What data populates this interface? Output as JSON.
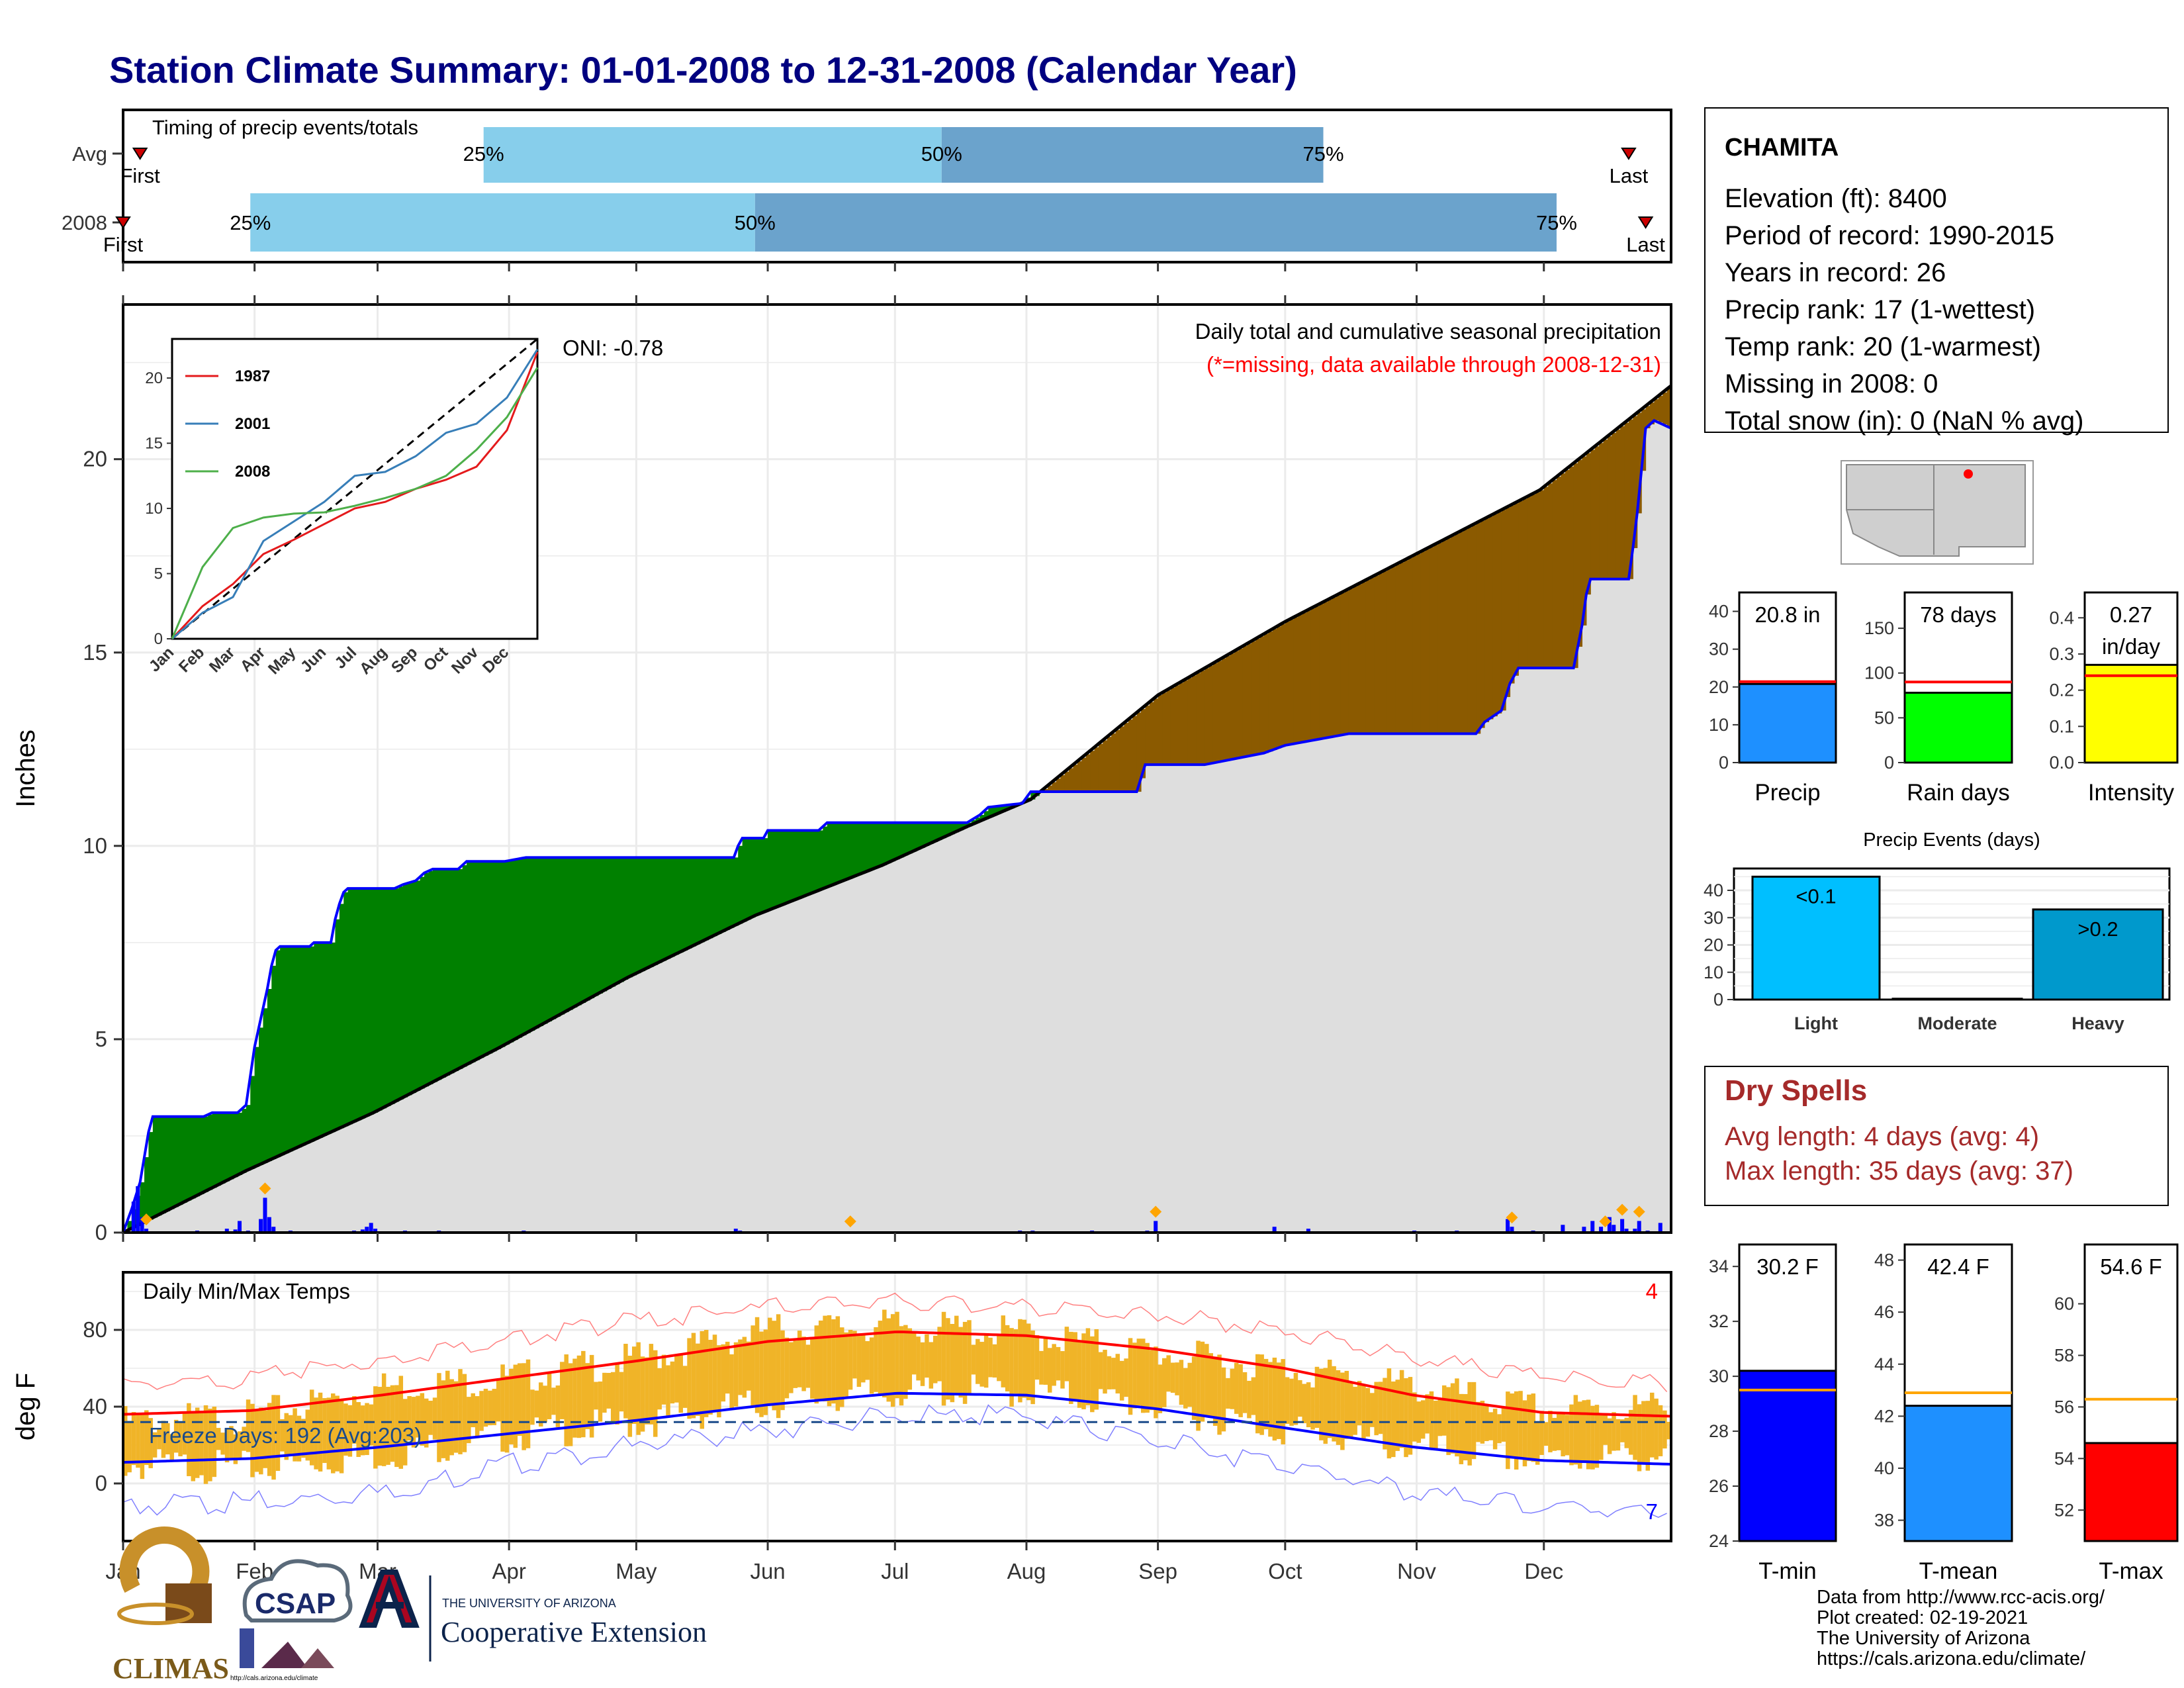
{
  "page": {
    "title": "Station Climate Summary: 01-01-2008 to 12-31-2008 (Calendar Year)",
    "footer": [
      "Data from http://www.rcc-acis.org/",
      "Plot created: 02-19-2021",
      "The University of Arizona",
      "https://cals.arizona.edu/climate/"
    ],
    "logos": {
      "climas": "CLIMAS",
      "csap": "CSAP",
      "csap_url": "http://cals.arizona.edu/climate",
      "ua_small": "THE UNIVERSITY OF ARIZONA",
      "ua_big": "Cooperative Extension"
    }
  },
  "station": {
    "name": "CHAMITA",
    "lines": [
      "Elevation (ft): 8400",
      "Period of record: 1990-2015",
      "Years in record: 26",
      "Precip rank: 17 (1-wettest)",
      "Temp rank: 20 (1-warmest)",
      "Missing in 2008: 0",
      "Total snow (in): 0 (NaN % avg)"
    ]
  },
  "dry_spells": {
    "title": "Dry Spells",
    "lines": [
      "Avg length: 4 days (avg: 4)",
      "Max length: 35 days (avg: 37)"
    ]
  },
  "colors": {
    "title": "#000080",
    "wet": "#008000",
    "dry": "#8B5A00",
    "cum_line": "#0000ff",
    "avg_line": "#000000",
    "bar_light": "#87CEEB",
    "bar_dark": "#6BA3CC",
    "tmax": "#ff0000",
    "tmin": "#0000ff",
    "temp_bar": "#F0B428",
    "dry_text": "#A52A2A",
    "missing": "#ff0000"
  },
  "chart_data": [
    {
      "type": "bar",
      "title": "Timing of precip events/totals",
      "categories": [
        "Avg",
        "2008"
      ],
      "x_labels": [
        "Jan",
        "Feb",
        "Mar",
        "Apr",
        "May",
        "Jun",
        "Jul",
        "Aug",
        "Sep",
        "Oct",
        "Nov",
        "Dec"
      ],
      "series": [
        {
          "name": "Avg",
          "first_doy": 5,
          "p25_doy": 86,
          "p50_doy": 194,
          "p75_doy": 284,
          "last_doy": 356,
          "labels": [
            "First",
            "25%",
            "50%",
            "75%",
            "Last"
          ]
        },
        {
          "name": "2008",
          "first_doy": 1,
          "p25_doy": 31,
          "p50_doy": 150,
          "p75_doy": 339,
          "last_doy": 360,
          "labels": [
            "First",
            "25%",
            "50%",
            "75%",
            "Last"
          ]
        }
      ]
    },
    {
      "type": "area",
      "title": "Daily total and cumulative seasonal precipitation",
      "subtitle": "(*=missing, data available through 2008-12-31)",
      "annotation": "ONI: -0.78",
      "ylabel": "Inches",
      "ylim": [
        0,
        24
      ],
      "yticks": [
        0,
        5,
        10,
        15,
        20
      ],
      "x_labels": [
        "Jan",
        "Feb",
        "Mar",
        "Apr",
        "May",
        "Jun",
        "Jul",
        "Aug",
        "Sep",
        "Oct",
        "Nov",
        "Dec"
      ],
      "cumulative_2008": [
        [
          1,
          0
        ],
        [
          3,
          0.6
        ],
        [
          5,
          1.3
        ],
        [
          7,
          2.6
        ],
        [
          8,
          3.0
        ],
        [
          20,
          3.0
        ],
        [
          22,
          3.1
        ],
        [
          28,
          3.1
        ],
        [
          30,
          3.3
        ],
        [
          32,
          4.8
        ],
        [
          33,
          5.3
        ],
        [
          35,
          6.3
        ],
        [
          36,
          6.9
        ],
        [
          37,
          7.3
        ],
        [
          38,
          7.4
        ],
        [
          45,
          7.4
        ],
        [
          46,
          7.5
        ],
        [
          50,
          7.5
        ],
        [
          51,
          8.1
        ],
        [
          52,
          8.5
        ],
        [
          53,
          8.8
        ],
        [
          54,
          8.9
        ],
        [
          65,
          8.9
        ],
        [
          67,
          9.0
        ],
        [
          70,
          9.1
        ],
        [
          72,
          9.3
        ],
        [
          74,
          9.4
        ],
        [
          80,
          9.4
        ],
        [
          82,
          9.6
        ],
        [
          91,
          9.6
        ],
        [
          96,
          9.7
        ],
        [
          145,
          9.7
        ],
        [
          146,
          10.0
        ],
        [
          147,
          10.2
        ],
        [
          152,
          10.2
        ],
        [
          153,
          10.4
        ],
        [
          165,
          10.4
        ],
        [
          167,
          10.6
        ],
        [
          200,
          10.6
        ],
        [
          203,
          10.8
        ],
        [
          205,
          11.0
        ],
        [
          213,
          11.1
        ],
        [
          215,
          11.4
        ],
        [
          240,
          11.4
        ],
        [
          242,
          12.1
        ],
        [
          256,
          12.1
        ],
        [
          270,
          12.4
        ],
        [
          275,
          12.6
        ],
        [
          290,
          12.9
        ],
        [
          320,
          12.9
        ],
        [
          322,
          13.2
        ],
        [
          326,
          13.5
        ],
        [
          328,
          14.2
        ],
        [
          330,
          14.6
        ],
        [
          343,
          14.6
        ],
        [
          345,
          15.7
        ],
        [
          346,
          16.5
        ],
        [
          347,
          16.9
        ],
        [
          356,
          16.9
        ],
        [
          357,
          17.7
        ],
        [
          358,
          18.6
        ],
        [
          359,
          19.7
        ],
        [
          360,
          20.8
        ],
        [
          362,
          21.0
        ],
        [
          366,
          20.8
        ]
      ],
      "average_cumulative": [
        [
          1,
          0
        ],
        [
          30,
          1.6
        ],
        [
          60,
          3.1
        ],
        [
          90,
          4.8
        ],
        [
          120,
          6.6
        ],
        [
          150,
          8.2
        ],
        [
          180,
          9.5
        ],
        [
          200,
          10.5
        ],
        [
          215,
          11.2
        ],
        [
          245,
          13.9
        ],
        [
          275,
          15.8
        ],
        [
          305,
          17.5
        ],
        [
          335,
          19.2
        ],
        [
          366,
          21.9
        ]
      ],
      "daily_precip_events": [
        [
          3,
          0.8
        ],
        [
          4,
          1.2
        ],
        [
          5,
          0.4
        ],
        [
          6,
          0.1
        ],
        [
          18,
          0.05
        ],
        [
          25,
          0.1
        ],
        [
          27,
          0.08
        ],
        [
          28,
          0.3
        ],
        [
          30,
          0.05
        ],
        [
          33,
          0.35
        ],
        [
          34,
          0.9
        ],
        [
          35,
          0.4
        ],
        [
          36,
          0.15
        ],
        [
          40,
          0.05
        ],
        [
          55,
          0.05
        ],
        [
          57,
          0.08
        ],
        [
          58,
          0.15
        ],
        [
          59,
          0.25
        ],
        [
          60,
          0.1
        ],
        [
          67,
          0.05
        ],
        [
          75,
          0.05
        ],
        [
          80,
          0.03
        ],
        [
          88,
          0.02
        ],
        [
          95,
          0.05
        ],
        [
          118,
          0.03
        ],
        [
          145,
          0.1
        ],
        [
          146,
          0.05
        ],
        [
          152,
          0.03
        ],
        [
          164,
          0.03
        ],
        [
          198,
          0.03
        ],
        [
          200,
          0.02
        ],
        [
          210,
          0.02
        ],
        [
          212,
          0.05
        ],
        [
          215,
          0.05
        ],
        [
          229,
          0.05
        ],
        [
          238,
          0.02
        ],
        [
          242,
          0.05
        ],
        [
          244,
          0.3
        ],
        [
          253,
          0.02
        ],
        [
          272,
          0.15
        ],
        [
          280,
          0.1
        ],
        [
          305,
          0.05
        ],
        [
          315,
          0.05
        ],
        [
          321,
          0.02
        ],
        [
          327,
          0.35
        ],
        [
          328,
          0.15
        ],
        [
          333,
          0.05
        ],
        [
          340,
          0.2
        ],
        [
          345,
          0.15
        ],
        [
          347,
          0.3
        ],
        [
          349,
          0.15
        ],
        [
          351,
          0.4
        ],
        [
          352,
          0.2
        ],
        [
          354,
          0.35
        ],
        [
          355,
          0.1
        ],
        [
          357,
          0.1
        ],
        [
          358,
          0.3
        ],
        [
          360,
          0.05
        ],
        [
          363,
          0.25
        ]
      ],
      "extreme_markers_doy": [
        6,
        34,
        172,
        244,
        328,
        350,
        354,
        358
      ],
      "inset": {
        "type": "line",
        "yticks": [
          0,
          5,
          10,
          15,
          20
        ],
        "ylim": [
          0,
          23
        ],
        "x_labels": [
          "Jan",
          "Feb",
          "Mar",
          "Apr",
          "May",
          "Jun",
          "Jul",
          "Aug",
          "Sep",
          "Oct",
          "Nov",
          "Dec"
        ],
        "series": [
          {
            "name": "1987",
            "color": "#e41a1c",
            "values": [
              0,
              2.5,
              4.2,
              6.5,
              7.6,
              8.8,
              10.0,
              10.5,
              11.5,
              12.2,
              13.2,
              16.0,
              22.0
            ]
          },
          {
            "name": "2001",
            "color": "#377eb8",
            "values": [
              0,
              2.0,
              3.2,
              7.5,
              9.0,
              10.5,
              12.5,
              12.8,
              14.0,
              15.8,
              16.5,
              18.5,
              22.2
            ]
          },
          {
            "name": "2008",
            "color": "#4daf4a",
            "values": [
              0,
              5.5,
              8.5,
              9.3,
              9.6,
              9.7,
              10.2,
              10.8,
              11.5,
              12.5,
              14.5,
              17.0,
              20.8
            ]
          }
        ]
      }
    },
    {
      "type": "bar",
      "title": "Daily Min/Max Temps",
      "ylabel": "deg F",
      "ylim": [
        -30,
        110
      ],
      "yticks": [
        0,
        40,
        80
      ],
      "x_labels": [
        "Jan",
        "Feb",
        "Mar",
        "Apr",
        "May",
        "Jun",
        "Jul",
        "Aug",
        "Sep",
        "Oct",
        "Nov",
        "Dec"
      ],
      "annotation": "Freeze Days: 192 (Avg:203)",
      "freezing_line": 32,
      "count_record_high": "4",
      "count_record_low": "7",
      "normal_tmax_monthly": [
        36,
        38,
        46,
        55,
        64,
        74,
        79,
        77,
        70,
        60,
        46,
        37,
        35
      ],
      "normal_tmin_monthly": [
        11,
        13,
        19,
        26,
        33,
        41,
        47,
        46,
        39,
        29,
        19,
        12,
        10
      ],
      "record_tmax_monthly": [
        50,
        55,
        65,
        75,
        85,
        92,
        95,
        92,
        88,
        80,
        65,
        55,
        52
      ],
      "record_tmin_monthly": [
        -12,
        -10,
        -5,
        10,
        20,
        28,
        35,
        35,
        22,
        10,
        -5,
        -12,
        -15
      ],
      "obs_tmax_monthly": [
        32,
        35,
        50,
        55,
        65,
        80,
        82,
        78,
        68,
        60,
        50,
        38,
        40
      ],
      "obs_tmin_monthly": [
        10,
        8,
        15,
        25,
        32,
        42,
        48,
        48,
        40,
        28,
        18,
        12,
        15
      ]
    },
    {
      "type": "bar",
      "title": "",
      "categories": [
        "Precip"
      ],
      "values": [
        20.8
      ],
      "avg": 21.4,
      "label": "20.8 in",
      "ylim": [
        0,
        45
      ],
      "yticks": [
        0,
        10,
        20,
        30,
        40
      ],
      "color": "#1E90FF"
    },
    {
      "type": "bar",
      "title": "",
      "categories": [
        "Rain days"
      ],
      "values": [
        78
      ],
      "avg": 90,
      "label": "78 days",
      "ylim": [
        0,
        190
      ],
      "yticks": [
        0,
        50,
        100,
        150
      ],
      "color": "#00FF00"
    },
    {
      "type": "bar",
      "title": "",
      "categories": [
        "Intensity"
      ],
      "values": [
        0.27
      ],
      "avg": 0.24,
      "label": "0.27",
      "label2": "in/day",
      "ylim": [
        0,
        0.47
      ],
      "yticks": [
        "0.0",
        "0.1",
        "0.2",
        "0.3",
        "0.4"
      ],
      "color": "#FFFF00"
    },
    {
      "type": "bar",
      "title": "Precip Events (days)",
      "categories": [
        "Light",
        "Moderate",
        "Heavy"
      ],
      "values": [
        45,
        0.3,
        33
      ],
      "labels": [
        "<0.1",
        "",
        ">0.2"
      ],
      "ylim": [
        0,
        48
      ],
      "yticks": [
        0,
        10,
        20,
        30,
        40
      ],
      "colors": [
        "#00BFFF",
        "#1E90FF",
        "#0099CC"
      ]
    },
    {
      "type": "bar",
      "title": "",
      "categories": [
        "T-min"
      ],
      "values": [
        30.2
      ],
      "avg": 29.5,
      "label": "30.2 F",
      "ylim": [
        24,
        34.8
      ],
      "yticks": [
        24,
        26,
        28,
        30,
        32,
        34
      ],
      "color": "#0000FF"
    },
    {
      "type": "bar",
      "title": "",
      "categories": [
        "T-mean"
      ],
      "values": [
        42.4
      ],
      "avg": 42.9,
      "label": "42.4 F",
      "ylim": [
        37.2,
        48.6
      ],
      "yticks": [
        38,
        40,
        42,
        44,
        46,
        48
      ],
      "color": "#1E90FF"
    },
    {
      "type": "bar",
      "title": "",
      "categories": [
        "T-max"
      ],
      "values": [
        54.6
      ],
      "avg": 56.3,
      "label": "54.6 F",
      "ylim": [
        50.8,
        62.3
      ],
      "yticks": [
        52,
        54,
        56,
        58,
        60
      ],
      "color": "#FF0000"
    }
  ]
}
